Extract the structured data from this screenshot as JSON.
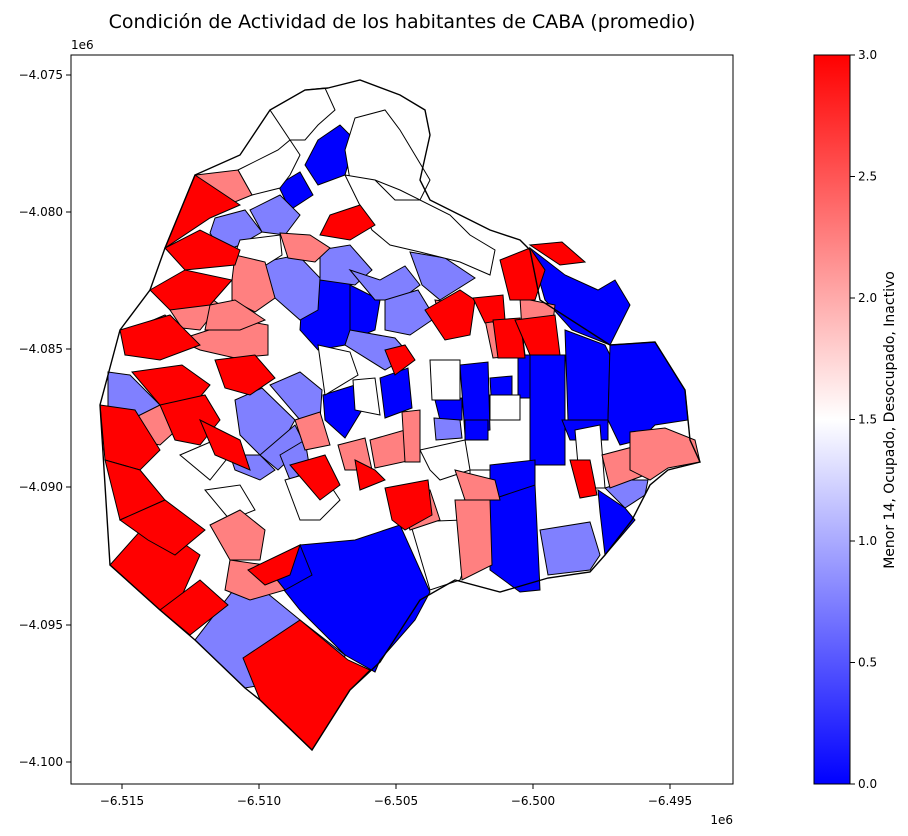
{
  "title": "Condición de Actividad de los habitantes de CABA (promedio)",
  "x_axis": {
    "offset_label": "1e6",
    "ticks": [
      "−6.515",
      "−6.510",
      "−6.505",
      "−6.500",
      "−6.495"
    ]
  },
  "y_axis": {
    "offset_label": "1e6",
    "ticks": [
      "−4.075",
      "−4.080",
      "−4.085",
      "−4.090",
      "−4.095",
      "−4.100"
    ]
  },
  "colorbar": {
    "label": "Menor 14, Ocupado, Desocupado, Inactivo",
    "ticks": [
      "0.0",
      "0.5",
      "1.0",
      "1.5",
      "2.0",
      "2.5",
      "3.0"
    ],
    "vmin": 0.0,
    "vmax": 3.0,
    "colormap": "bwr",
    "colors": {
      "low": "#0000ff",
      "mid": "#ffffff",
      "high": "#ff0000"
    }
  },
  "chart_data": {
    "type": "choropleth",
    "title": "Condición de Actividad de los habitantes de CABA (promedio)",
    "value_label": "Menor 14, Ocupado, Desocupado, Inactivo",
    "value_range": [
      0.0,
      3.0
    ],
    "xlim": [
      -6.517,
      -6.493
    ],
    "ylim": [
      -4.1008,
      -4.0738
    ],
    "axis_multiplier": "1e6",
    "grid": false,
    "legend": "colorbar right",
    "region_classes": [
      {
        "value": 0.0
      },
      {
        "value": 0.75
      },
      {
        "value": 1.5
      },
      {
        "value": 2.25
      },
      {
        "value": 3.0
      }
    ]
  }
}
